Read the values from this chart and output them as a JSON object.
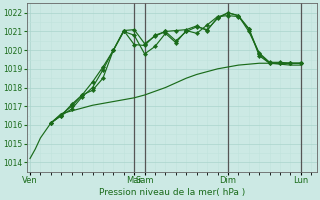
{
  "xlabel": "Pression niveau de la mer( hPa )",
  "ylim": [
    1013.5,
    1022.5
  ],
  "yticks": [
    1014,
    1015,
    1016,
    1017,
    1018,
    1019,
    1020,
    1021,
    1022
  ],
  "bg_color": "#cce9e4",
  "grid_major_color": "#aad4cc",
  "grid_minor_color": "#c0e2dc",
  "line_color": "#1a6b1a",
  "vline_color": "#555555",
  "day_labels": [
    "Ven",
    "Mar",
    "Sam",
    "Dim",
    "Lun"
  ],
  "day_positions": [
    0,
    10,
    11,
    19,
    26
  ],
  "xlim": [
    -0.3,
    27.5
  ],
  "series1_x": [
    0,
    0.5,
    1,
    2,
    3,
    4,
    5,
    6,
    7,
    8,
    9,
    10,
    11,
    12,
    13,
    14,
    15,
    16,
    17,
    18,
    19,
    20,
    21,
    22,
    23,
    24,
    25,
    26
  ],
  "series1_y": [
    1014.2,
    1014.7,
    1015.3,
    1016.1,
    1016.6,
    1016.75,
    1016.9,
    1017.05,
    1017.15,
    1017.25,
    1017.35,
    1017.45,
    1017.6,
    1017.8,
    1018.0,
    1018.25,
    1018.5,
    1018.7,
    1018.85,
    1019.0,
    1019.1,
    1019.2,
    1019.25,
    1019.3,
    1019.3,
    1019.25,
    1019.2,
    1019.2
  ],
  "series2_x": [
    2,
    3,
    4,
    5,
    6,
    7,
    8,
    9,
    10,
    11,
    12,
    13,
    14,
    15,
    16,
    17,
    18,
    19,
    20,
    21,
    22,
    23,
    24,
    25,
    26
  ],
  "series2_y": [
    1016.1,
    1016.55,
    1017.0,
    1017.6,
    1018.3,
    1019.1,
    1020.0,
    1021.0,
    1020.8,
    1019.8,
    1020.2,
    1020.9,
    1020.4,
    1021.05,
    1020.9,
    1021.35,
    1021.8,
    1021.85,
    1021.8,
    1021.15,
    1019.7,
    1019.3,
    1019.3,
    1019.3,
    1019.3
  ],
  "series3_x": [
    2,
    3,
    4,
    5,
    6,
    7,
    8,
    9,
    10,
    11,
    12,
    13,
    14,
    15,
    16,
    17,
    18,
    19,
    20,
    21,
    22,
    23,
    24,
    25,
    26
  ],
  "series3_y": [
    1016.1,
    1016.5,
    1017.1,
    1017.6,
    1017.85,
    1018.5,
    1020.0,
    1021.05,
    1021.1,
    1020.35,
    1020.75,
    1021.0,
    1021.05,
    1021.1,
    1021.3,
    1021.05,
    1021.75,
    1022.0,
    1021.85,
    1021.0,
    1019.85,
    1019.35,
    1019.35,
    1019.3,
    1019.3
  ],
  "series4_x": [
    2,
    3,
    4,
    5,
    6,
    7,
    8,
    9,
    10,
    11,
    12,
    13,
    14,
    15,
    16,
    17,
    18,
    19,
    20,
    21,
    22,
    23,
    24,
    25,
    26
  ],
  "series4_y": [
    1016.1,
    1016.5,
    1016.85,
    1017.5,
    1018.0,
    1018.95,
    1020.0,
    1021.05,
    1020.3,
    1020.25,
    1020.8,
    1021.0,
    1020.5,
    1021.0,
    1021.25,
    1021.1,
    1021.7,
    1022.0,
    1021.85,
    1021.15,
    1019.8,
    1019.3,
    1019.3,
    1019.3,
    1019.3
  ]
}
